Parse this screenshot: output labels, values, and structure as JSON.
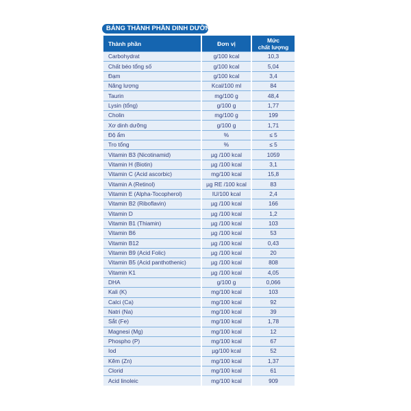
{
  "title": "BẢNG THÀNH PHẦN DINH DƯỠNG",
  "headers": {
    "ingredient": "Thành phần",
    "unit": "Đơn vị",
    "amount_line1": "Mức",
    "amount_line2": "chất lượng"
  },
  "rows": [
    {
      "name": "Carbohydrat",
      "unit": "g/100 kcal",
      "value": "10,3"
    },
    {
      "name": "Chất béo tổng số",
      "unit": "g/100 kcal",
      "value": "5,04"
    },
    {
      "name": "Đạm",
      "unit": "g/100 kcal",
      "value": "3,4"
    },
    {
      "name": "Năng lượng",
      "unit": "Kcal/100 ml",
      "value": "84"
    },
    {
      "name": "Taurin",
      "unit": "mg/100 g",
      "value": "48,4"
    },
    {
      "name": "Lysin (tổng)",
      "unit": "g/100 g",
      "value": "1,77"
    },
    {
      "name": "Cholin",
      "unit": "mg/100 g",
      "value": "199"
    },
    {
      "name": "Xơ dinh dưỡng",
      "unit": "g/100 g",
      "value": "1,71"
    },
    {
      "name": "Độ ẩm",
      "unit": "%",
      "value": "≤ 5"
    },
    {
      "name": "Tro tổng",
      "unit": "%",
      "value": "≤ 5"
    },
    {
      "name": "Vitamin B3 (Nicotinamid)",
      "unit": "µg /100 kcal",
      "value": "1059"
    },
    {
      "name": "Vitamin H (Biotin)",
      "unit": "µg /100 kcal",
      "value": "3,1"
    },
    {
      "name": "Vitamin C (Acid ascorbic)",
      "unit": "mg/100 kcal",
      "value": "15,8"
    },
    {
      "name": "Vitamin A (Retinol)",
      "unit": "µg RE /100 kcal",
      "value": "83"
    },
    {
      "name": "Vitamin E (Alpha-Tocopherol)",
      "unit": "IU/100 kcal",
      "value": "2,4"
    },
    {
      "name": "Vitamin B2 (Riboflavin)",
      "unit": "µg /100 kcal",
      "value": "166"
    },
    {
      "name": "Vitamin D",
      "unit": "µg /100 kcal",
      "value": "1,2"
    },
    {
      "name": "Vitamin B1 (Thiamin)",
      "unit": "µg /100 kcal",
      "value": "103"
    },
    {
      "name": "Vitamin B6",
      "unit": "µg /100 kcal",
      "value": "53"
    },
    {
      "name": "Vitamin B12",
      "unit": "µg /100 kcal",
      "value": "0,43"
    },
    {
      "name": "Vitamin B9 (Acid Folic)",
      "unit": "µg /100 kcal",
      "value": "20"
    },
    {
      "name": "Vitamin B5 (Acid panthothenic)",
      "unit": "µg /100 kcal",
      "value": "808"
    },
    {
      "name": "Vitamin K1",
      "unit": "µg /100 kcal",
      "value": "4,05"
    },
    {
      "name": "DHA",
      "unit": "g/100 g",
      "value": "0,066"
    },
    {
      "name": "Kali (K)",
      "unit": "mg/100 kcal",
      "value": "103"
    },
    {
      "name": "Calci (Ca)",
      "unit": "mg/100 kcal",
      "value": "92"
    },
    {
      "name": "Natri (Na)",
      "unit": "mg/100 kcal",
      "value": "39"
    },
    {
      "name": "Sắt (Fe)",
      "unit": "mg/100 kcal",
      "value": "1,78"
    },
    {
      "name": "Magnesi (Mg)",
      "unit": "mg/100 kcal",
      "value": "12"
    },
    {
      "name": "Phospho (P)",
      "unit": "mg/100 kcal",
      "value": "67"
    },
    {
      "name": "Iod",
      "unit": "µg/100 kcal",
      "value": "52"
    },
    {
      "name": "Kẽm (Zn)",
      "unit": "mg/100 kcal",
      "value": "1,37"
    },
    {
      "name": "Clorid",
      "unit": "mg/100 kcal",
      "value": "61"
    },
    {
      "name": "Acid linoleic",
      "unit": "mg/100 kcal",
      "value": "909"
    }
  ],
  "colors": {
    "header": "#1565b0",
    "row_bg": "#e6eef8",
    "text": "#2d3b78",
    "divider": "#7fb0de"
  }
}
